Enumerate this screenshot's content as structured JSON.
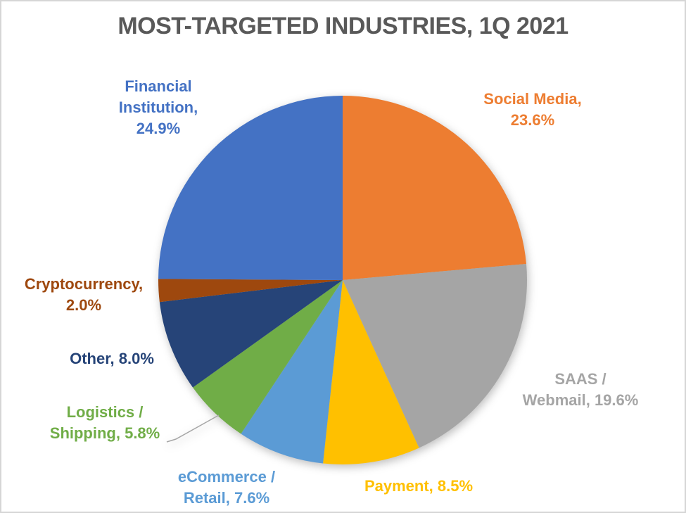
{
  "title": "MOST-TARGETED INDUSTRIES, 1Q 2021",
  "colors": {
    "title_text": "#595959",
    "background": "#FFFFFF",
    "border": "#D6D6D6",
    "leader_line": "#A6A6A6"
  },
  "chart_data": {
    "type": "pie",
    "title": "MOST-TARGETED INDUSTRIES, 1Q 2021",
    "start_angle_deg": 0,
    "direction": "clockwise",
    "legend_position": "none",
    "total": 100.0,
    "slices": [
      {
        "name": "Social Media",
        "value": 23.6,
        "color": "#ED7D31",
        "label_lines": [
          "Social Media,",
          "23.6%"
        ]
      },
      {
        "name": "SAAS / Webmail",
        "value": 19.6,
        "color": "#A5A5A5",
        "label_lines": [
          "SAAS /",
          "Webmail, 19.6%"
        ]
      },
      {
        "name": "Payment",
        "value": 8.5,
        "color": "#FFC000",
        "label_lines": [
          "Payment, 8.5%"
        ]
      },
      {
        "name": "eCommerce / Retail",
        "value": 7.6,
        "color": "#5B9BD5",
        "label_lines": [
          "eCommerce /",
          "Retail, 7.6%"
        ]
      },
      {
        "name": "Logistics / Shipping",
        "value": 5.8,
        "color": "#70AD47",
        "label_lines": [
          "Logistics /",
          "Shipping, 5.8%"
        ]
      },
      {
        "name": "Other",
        "value": 8.0,
        "color": "#264478",
        "label_lines": [
          "Other, 8.0%"
        ]
      },
      {
        "name": "Cryptocurrency",
        "value": 2.0,
        "color": "#9E480E",
        "label_lines": [
          "Cryptocurrency,",
          "2.0%"
        ]
      },
      {
        "name": "Financial Institution",
        "value": 24.9,
        "color": "#4472C4",
        "label_lines": [
          "Financial",
          "Institution,",
          "24.9%"
        ]
      }
    ]
  }
}
